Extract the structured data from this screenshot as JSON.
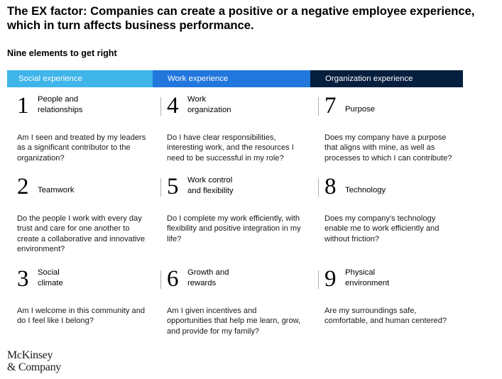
{
  "title": "The EX factor: Companies can create a positive or a negative employee experience, which in turn affects business performance.",
  "subtitle": "Nine elements to get right",
  "columns": [
    {
      "header": "Social experience",
      "color": "#3fb5ea",
      "text_color": "#ffffff",
      "items": [
        {
          "number": "1",
          "name": "People and relationships",
          "question": "Am I seen and treated by my leaders as a significant contributor to the organization?"
        },
        {
          "number": "2",
          "name": "Teamwork",
          "question": "Do the people I work with every day trust and care for one another to create a collaborative and innovative environment?"
        },
        {
          "number": "3",
          "name": "Social climate",
          "question": "Am I welcome in this community and do I feel like I belong?"
        }
      ]
    },
    {
      "header": "Work experience",
      "color": "#2277dd",
      "text_color": "#ffffff",
      "items": [
        {
          "number": "4",
          "name": "Work organization",
          "question": "Do I have clear responsibilities, interesting work, and the resources I need to be successful in my role?"
        },
        {
          "number": "5",
          "name": "Work control and flexibility",
          "question": "Do I complete my work efficiently, with flexibility and positive integration in my life?"
        },
        {
          "number": "6",
          "name": "Growth and rewards",
          "question": "Am I given incentives and opportunities that help me learn, grow, and provide for my family?"
        }
      ]
    },
    {
      "header": "Organization experience",
      "color": "#061f3f",
      "text_color": "#ffffff",
      "items": [
        {
          "number": "7",
          "name": "Purpose",
          "question": "Does my company have a purpose that aligns with mine, as well as processes to which I can contribute?"
        },
        {
          "number": "8",
          "name": "Technology",
          "question": "Does my company's technology enable me to work efficiently and without friction?"
        },
        {
          "number": "9",
          "name": "Physical environment",
          "question": "Are my surroundings safe, comfortable, and human centered?"
        }
      ]
    }
  ],
  "logo": {
    "line1": "McKinsey",
    "line2": "& Company"
  }
}
